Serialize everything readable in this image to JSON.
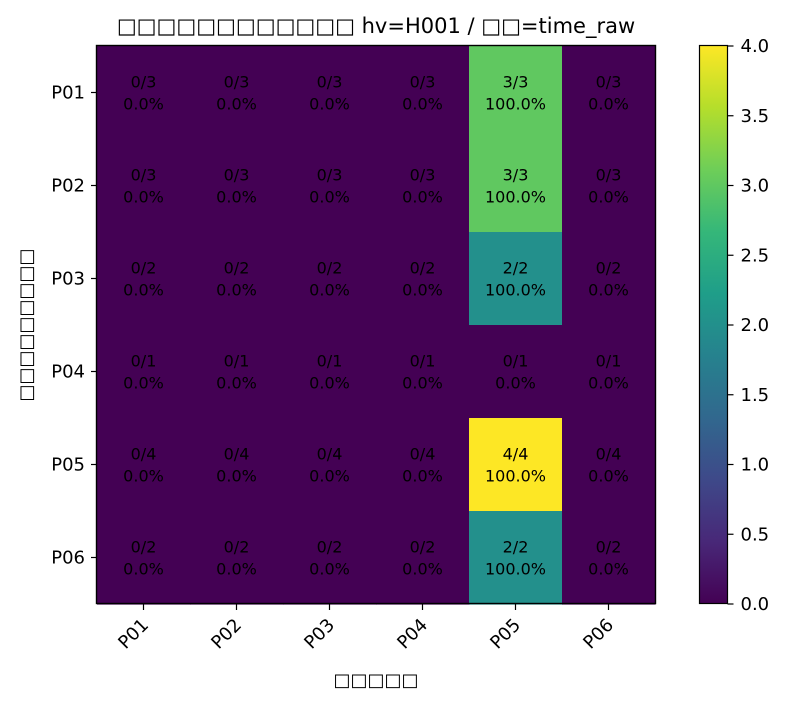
{
  "chart_data": {
    "type": "heatmap",
    "title": "□□□□□□□□□□□□ hv=H001 / □□=time_raw",
    "xlabel": "□□□□□",
    "ylabel": "□□□□□□□□□",
    "x_categories": [
      "P01",
      "P02",
      "P03",
      "P04",
      "P05",
      "P06"
    ],
    "y_categories": [
      "P01",
      "P02",
      "P03",
      "P04",
      "P05",
      "P06"
    ],
    "values": [
      [
        0,
        0,
        0,
        0,
        3,
        0
      ],
      [
        0,
        0,
        0,
        0,
        3,
        0
      ],
      [
        0,
        0,
        0,
        0,
        2,
        0
      ],
      [
        0,
        0,
        0,
        0,
        0,
        0
      ],
      [
        0,
        0,
        0,
        0,
        4,
        0
      ],
      [
        0,
        0,
        0,
        0,
        2,
        0
      ]
    ],
    "cell_labels": [
      [
        [
          "0/3",
          "0.0%"
        ],
        [
          "0/3",
          "0.0%"
        ],
        [
          "0/3",
          "0.0%"
        ],
        [
          "0/3",
          "0.0%"
        ],
        [
          "3/3",
          "100.0%"
        ],
        [
          "0/3",
          "0.0%"
        ]
      ],
      [
        [
          "0/3",
          "0.0%"
        ],
        [
          "0/3",
          "0.0%"
        ],
        [
          "0/3",
          "0.0%"
        ],
        [
          "0/3",
          "0.0%"
        ],
        [
          "3/3",
          "100.0%"
        ],
        [
          "0/3",
          "0.0%"
        ]
      ],
      [
        [
          "0/2",
          "0.0%"
        ],
        [
          "0/2",
          "0.0%"
        ],
        [
          "0/2",
          "0.0%"
        ],
        [
          "0/2",
          "0.0%"
        ],
        [
          "2/2",
          "100.0%"
        ],
        [
          "0/2",
          "0.0%"
        ]
      ],
      [
        [
          "0/1",
          "0.0%"
        ],
        [
          "0/1",
          "0.0%"
        ],
        [
          "0/1",
          "0.0%"
        ],
        [
          "0/1",
          "0.0%"
        ],
        [
          "0/1",
          "0.0%"
        ],
        [
          "0/1",
          "0.0%"
        ]
      ],
      [
        [
          "0/4",
          "0.0%"
        ],
        [
          "0/4",
          "0.0%"
        ],
        [
          "0/4",
          "0.0%"
        ],
        [
          "0/4",
          "0.0%"
        ],
        [
          "4/4",
          "100.0%"
        ],
        [
          "0/4",
          "0.0%"
        ]
      ],
      [
        [
          "0/2",
          "0.0%"
        ],
        [
          "0/2",
          "0.0%"
        ],
        [
          "0/2",
          "0.0%"
        ],
        [
          "0/2",
          "0.0%"
        ],
        [
          "2/2",
          "100.0%"
        ],
        [
          "0/2",
          "0.0%"
        ]
      ]
    ],
    "colormap": "viridis",
    "colorbar": {
      "range": [
        0.0,
        4.0
      ],
      "ticks": [
        "0.0",
        "0.5",
        "1.0",
        "1.5",
        "2.0",
        "2.5",
        "3.0",
        "3.5",
        "4.0"
      ]
    },
    "colors": {
      "viridis_stops": [
        "#440154",
        "#482878",
        "#3e4989",
        "#31688e",
        "#26828e",
        "#1f9e89",
        "#35b779",
        "#6ece58",
        "#b5de2b",
        "#fde725"
      ]
    }
  }
}
